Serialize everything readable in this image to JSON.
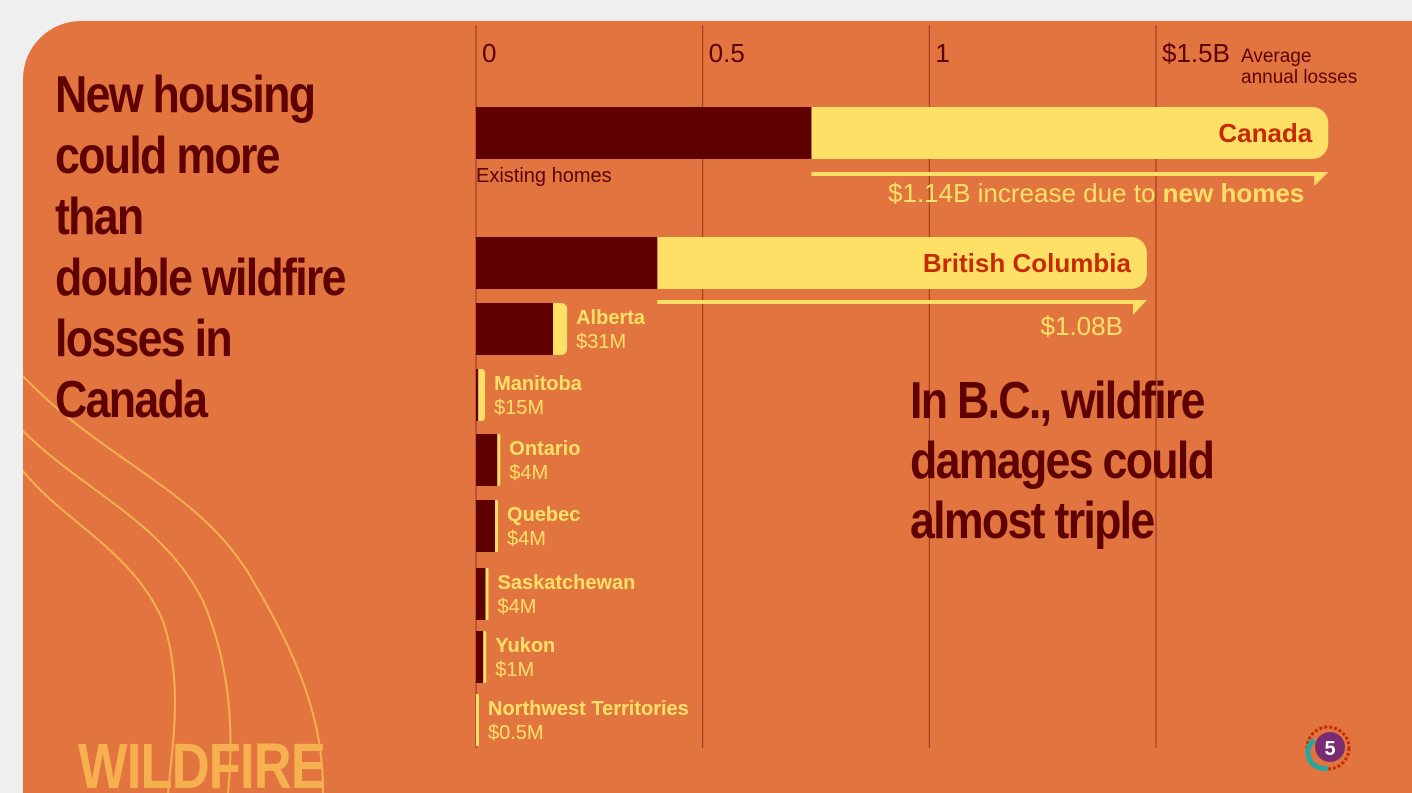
{
  "headline": "New housing\ncould more than\ndouble wildfire\nlosses in Canada",
  "annotation": "In B.C., wildfire\ndamages could\nalmost triple",
  "brand_text": "WILDFIRE",
  "logo_text": "5",
  "colors": {
    "background": "#e27440",
    "existing_homes": "#5e0100",
    "new_homes": "#ffe066",
    "headline": "#5e0100",
    "label": "#c52a00"
  },
  "chart_data": {
    "type": "bar",
    "orientation": "horizontal",
    "stacked": true,
    "xlim": [
      0,
      1.5
    ],
    "x_ticks": [
      "0",
      "0.5",
      "1",
      "$1.5B"
    ],
    "x_tick_values": [
      0,
      0.5,
      1,
      1.5
    ],
    "axis_note": "Average annual losses",
    "grid": true,
    "series": [
      {
        "name": "Existing homes",
        "color": "#5e0100"
      },
      {
        "name": "new homes",
        "color": "#ffe066"
      }
    ],
    "canada": {
      "label": "Canada",
      "existing": 0.74,
      "increase": 1.14,
      "increase_label": "$1.14B increase due to ",
      "increase_label_bold": "new homes",
      "existing_label": "Existing homes"
    },
    "bc": {
      "label": "British Columbia",
      "existing": 0.4,
      "increase": 1.08,
      "increase_label": "$1.08B"
    },
    "provinces": [
      {
        "name": "Alberta",
        "value_label": "$31M",
        "existing": 0.17,
        "increase": 0.031
      },
      {
        "name": "Manitoba",
        "value_label": "$15M",
        "existing": 0.005,
        "increase": 0.015
      },
      {
        "name": "Ontario",
        "value_label": "$4M",
        "existing": 0.047,
        "increase": 0.004
      },
      {
        "name": "Quebec",
        "value_label": "$4M",
        "existing": 0.042,
        "increase": 0.004
      },
      {
        "name": "Saskatchewan",
        "value_label": "$4M",
        "existing": 0.021,
        "increase": 0.004
      },
      {
        "name": "Yukon",
        "value_label": "$1M",
        "existing": 0.016,
        "increase": 0.001
      },
      {
        "name": "Northwest Territories",
        "value_label": "$0.5M",
        "existing": 0.0,
        "increase": 0.0005
      }
    ]
  }
}
